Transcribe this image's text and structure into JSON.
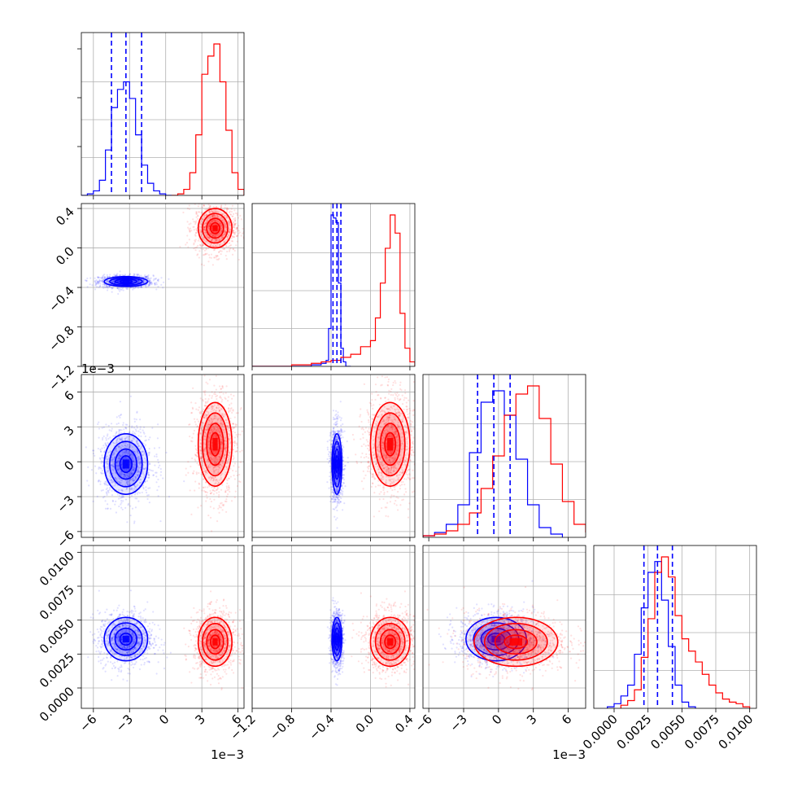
{
  "chart_data": {
    "type": "corner",
    "title": "",
    "grid": true,
    "series": [
      {
        "color": "#0000ff"
      },
      {
        "color": "#ff0000"
      }
    ],
    "variables": [
      {
        "range": [
          -0.007,
          0.0065
        ],
        "ticks": [
          -0.006,
          -0.003,
          0,
          0.003,
          0.006
        ],
        "tick_labels": [
          "−6",
          "−3",
          "0",
          "3",
          "6"
        ],
        "offset_label": "1e−3"
      },
      {
        "range": [
          -1.2,
          0.45
        ],
        "ticks": [
          -1.2,
          -0.8,
          -0.4,
          0.0,
          0.4
        ],
        "tick_labels": [
          "−1.2",
          "−0.8",
          "−0.4",
          "0.0",
          "0.4"
        ],
        "offset_label": ""
      },
      {
        "range": [
          -0.0065,
          0.0075
        ],
        "ticks": [
          -0.006,
          -0.003,
          0,
          0.003,
          0.006
        ],
        "tick_labels": [
          "−6",
          "−3",
          "0",
          "3",
          "6"
        ],
        "offset_label": "1e−3"
      },
      {
        "range": [
          -0.0015,
          0.0105
        ],
        "ticks": [
          0,
          0.0025,
          0.005,
          0.0075,
          0.01
        ],
        "tick_labels": [
          "0.0000",
          "0.0025",
          "0.0050",
          "0.0075",
          "0.0100"
        ],
        "offset_label": ""
      }
    ],
    "quantile_lines": {
      "color": "#0000ff",
      "v0": [
        -0.0045,
        -0.0033,
        -0.002
      ],
      "v1": [
        -0.38,
        -0.34,
        -0.3
      ],
      "v2": [
        -0.0018,
        -0.0004,
        0.001
      ],
      "v3": [
        0.0022,
        0.0032,
        0.0043
      ]
    },
    "histograms": [
      {
        "blue": {
          "edges": [
            -0.007,
            -0.0065,
            -0.006,
            -0.0055,
            -0.005,
            -0.0045,
            -0.004,
            -0.0035,
            -0.003,
            -0.0025,
            -0.002,
            -0.0015,
            -0.001,
            -0.0005,
            0,
            0.0005
          ],
          "counts": [
            0,
            1,
            3,
            10,
            30,
            58,
            70,
            75,
            64,
            40,
            20,
            8,
            3,
            1,
            0
          ]
        },
        "red": {
          "edges": [
            0.0005,
            0.001,
            0.0015,
            0.002,
            0.0025,
            0.003,
            0.0035,
            0.004,
            0.0045,
            0.005,
            0.0055,
            0.006,
            0.0065
          ],
          "counts": [
            0,
            1,
            4,
            15,
            40,
            80,
            92,
            100,
            75,
            43,
            15,
            4
          ]
        }
      },
      {
        "blue": {
          "edges": [
            -1.2,
            -1.1,
            -1.0,
            -0.9,
            -0.8,
            -0.7,
            -0.6,
            -0.5,
            -0.45,
            -0.425,
            -0.4,
            -0.375,
            -0.35,
            -0.325,
            -0.3,
            -0.275,
            -0.25,
            -0.2
          ],
          "counts": [
            0,
            0,
            0,
            0,
            0,
            0,
            1,
            2,
            4,
            25,
            100,
            98,
            95,
            55,
            12,
            3,
            0
          ]
        },
        "red": {
          "edges": [
            -1.2,
            -1.1,
            -1.0,
            -0.9,
            -0.8,
            -0.7,
            -0.6,
            -0.5,
            -0.4,
            -0.3,
            -0.2,
            -0.1,
            0.0,
            0.05,
            0.1,
            0.15,
            0.2,
            0.25,
            0.3,
            0.35,
            0.4,
            0.45
          ],
          "counts": [
            0,
            0,
            0,
            0,
            1,
            1,
            2,
            3,
            4,
            6,
            8,
            13,
            17,
            32,
            55,
            78,
            100,
            88,
            35,
            12,
            3
          ]
        }
      },
      {
        "blue": {
          "edges": [
            -0.0065,
            -0.0055,
            -0.0045,
            -0.0035,
            -0.0025,
            -0.0015,
            -0.0005,
            0.0005,
            0.0015,
            0.0025,
            0.0035,
            0.0045,
            0.0055
          ],
          "counts": [
            1,
            3,
            8,
            20,
            52,
            83,
            90,
            75,
            48,
            20,
            6,
            2
          ]
        },
        "red": {
          "edges": [
            -0.0065,
            -0.0055,
            -0.0045,
            -0.0035,
            -0.0025,
            -0.0015,
            -0.0005,
            0.0005,
            0.0015,
            0.0025,
            0.0035,
            0.0045,
            0.0055,
            0.0065,
            0.0075
          ],
          "counts": [
            1,
            2,
            4,
            8,
            15,
            30,
            50,
            75,
            88,
            93,
            73,
            45,
            22,
            8,
            3
          ]
        }
      },
      {
        "blue": {
          "edges": [
            -0.0005,
            0,
            0.0005,
            0.001,
            0.0015,
            0.002,
            0.0025,
            0.003,
            0.0035,
            0.004,
            0.0045,
            0.005,
            0.0055,
            0.006
          ],
          "counts": [
            1,
            3,
            8,
            15,
            35,
            65,
            88,
            95,
            70,
            40,
            15,
            4,
            1
          ]
        },
        "red": {
          "edges": [
            0.0005,
            0.001,
            0.0015,
            0.002,
            0.0025,
            0.003,
            0.0035,
            0.004,
            0.0045,
            0.005,
            0.0055,
            0.006,
            0.0065,
            0.007,
            0.0075,
            0.008,
            0.0085,
            0.009,
            0.0095,
            0.01
          ],
          "counts": [
            2,
            5,
            12,
            33,
            58,
            88,
            98,
            85,
            60,
            45,
            37,
            30,
            22,
            15,
            10,
            6,
            4,
            3,
            1
          ]
        }
      }
    ],
    "clusters": [
      {
        "color": "#0000ff",
        "center": [
          -0.0033,
          -0.34,
          -0.0002,
          0.0036
        ],
        "sd": [
          0.0009,
          0.025,
          0.0013,
          0.0008
        ]
      },
      {
        "color": "#ff0000",
        "center": [
          0.0041,
          0.2,
          0.0015,
          0.0034
        ],
        "sd": [
          0.0007,
          0.1,
          0.0018,
          0.0009
        ]
      }
    ]
  }
}
